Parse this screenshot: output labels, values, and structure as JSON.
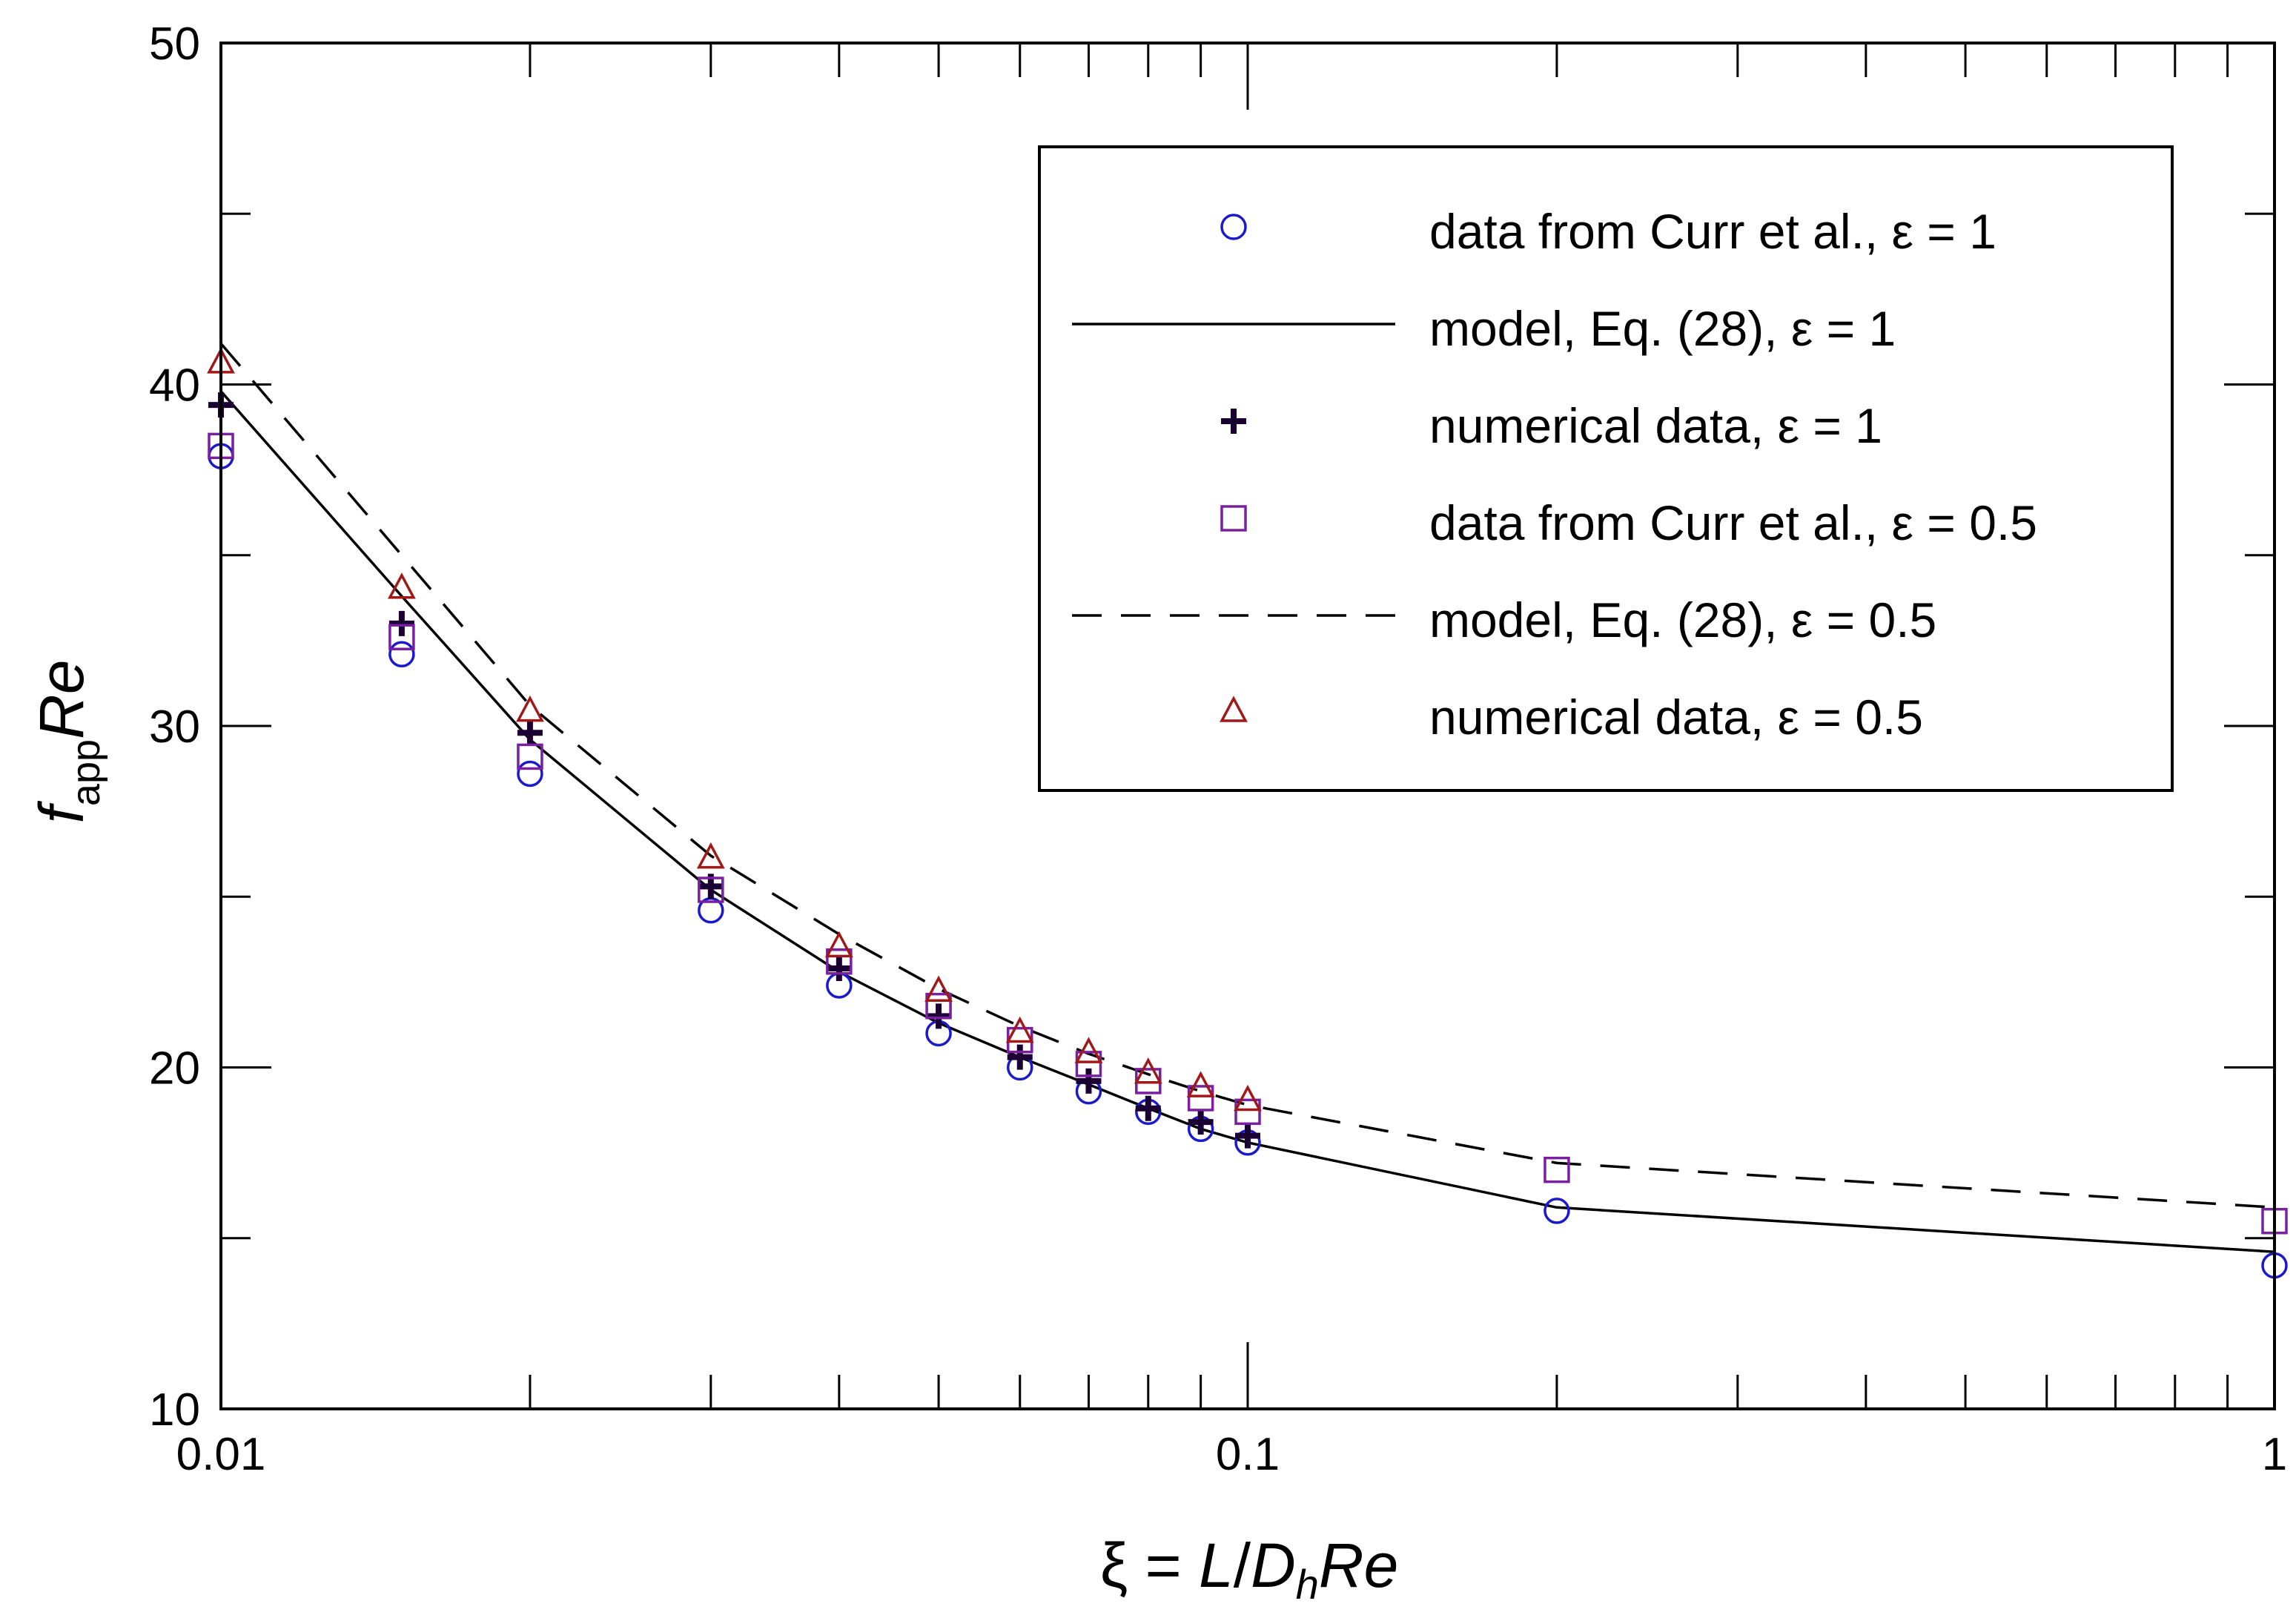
{
  "chart_data": {
    "type": "scatter",
    "x_scale": "log",
    "xlim": [
      0.01,
      1
    ],
    "ylim": [
      10,
      50
    ],
    "grid": false,
    "legend_position": "top-right",
    "x_ticks": [
      {
        "value": 0.01,
        "label": "0.01"
      },
      {
        "value": 0.1,
        "label": "0.1"
      },
      {
        "value": 1,
        "label": "1"
      }
    ],
    "y_ticks": [
      {
        "value": 10,
        "label": "10"
      },
      {
        "value": 20,
        "label": "20"
      },
      {
        "value": 30,
        "label": "30"
      },
      {
        "value": 40,
        "label": "40"
      },
      {
        "value": 50,
        "label": "50"
      }
    ],
    "y_minor_ticks": [
      15,
      25,
      35,
      45
    ],
    "xlabel": {
      "prefix": "ξ = ",
      "L": "L",
      "slash": "/",
      "D": "D",
      "D_sub": "h",
      "Re": "Re"
    },
    "ylabel": {
      "f": "f",
      "sub": "app",
      "Re": "Re"
    },
    "series": [
      {
        "name": "data from Curr et al., ε = 1",
        "kind": "marker",
        "marker": "circle",
        "color": "#1a1acc",
        "x": [
          0.01,
          0.015,
          0.02,
          0.03,
          0.04,
          0.05,
          0.06,
          0.07,
          0.08,
          0.09,
          0.1,
          0.2,
          1.0
        ],
        "y": [
          37.9,
          32.1,
          28.6,
          24.6,
          22.4,
          21.0,
          20.0,
          19.3,
          18.7,
          18.2,
          17.8,
          15.8,
          14.2
        ]
      },
      {
        "name": "model, Eq. (28), ε = 1",
        "kind": "line",
        "dash": "solid",
        "color": "#000000",
        "x": [
          0.01,
          0.015,
          0.02,
          0.03,
          0.04,
          0.05,
          0.06,
          0.07,
          0.08,
          0.09,
          0.1,
          0.2,
          1.0
        ],
        "y": [
          39.8,
          33.8,
          29.6,
          25.2,
          22.8,
          21.3,
          20.3,
          19.5,
          18.8,
          18.2,
          17.8,
          15.9,
          14.6
        ]
      },
      {
        "name": "numerical data, ε = 1",
        "kind": "marker",
        "marker": "plus",
        "color": "#1a0033",
        "x": [
          0.01,
          0.015,
          0.02,
          0.03,
          0.04,
          0.05,
          0.06,
          0.07,
          0.08,
          0.09,
          0.1
        ],
        "y": [
          39.4,
          33.0,
          29.8,
          25.3,
          22.9,
          21.5,
          20.3,
          19.6,
          18.8,
          18.4,
          18.0
        ]
      },
      {
        "name": "data from Curr et al., ε = 0.5",
        "kind": "marker",
        "marker": "square",
        "color": "#7a1fa2",
        "x": [
          0.01,
          0.015,
          0.02,
          0.03,
          0.04,
          0.05,
          0.06,
          0.07,
          0.08,
          0.09,
          0.1,
          0.2,
          1.0
        ],
        "y": [
          38.2,
          32.6,
          29.1,
          25.2,
          23.1,
          21.8,
          20.8,
          20.1,
          19.6,
          19.1,
          18.7,
          17.0,
          15.5
        ]
      },
      {
        "name": "model, Eq. (28), ε = 0.5",
        "kind": "line",
        "dash": "dashed",
        "color": "#000000",
        "x": [
          0.01,
          0.015,
          0.02,
          0.03,
          0.04,
          0.05,
          0.06,
          0.07,
          0.08,
          0.09,
          0.1,
          0.2,
          1.0
        ],
        "y": [
          41.2,
          35.0,
          30.6,
          26.2,
          23.9,
          22.3,
          21.2,
          20.4,
          19.8,
          19.3,
          18.9,
          17.2,
          15.9
        ]
      },
      {
        "name": "numerical data, ε = 0.5",
        "kind": "marker",
        "marker": "triangle",
        "color": "#a01818",
        "x": [
          0.01,
          0.015,
          0.02,
          0.03,
          0.04,
          0.05,
          0.06,
          0.07,
          0.08,
          0.09,
          0.1
        ],
        "y": [
          40.6,
          34.0,
          30.4,
          26.1,
          23.5,
          22.2,
          21.0,
          20.4,
          19.8,
          19.4,
          19.0
        ]
      }
    ]
  }
}
